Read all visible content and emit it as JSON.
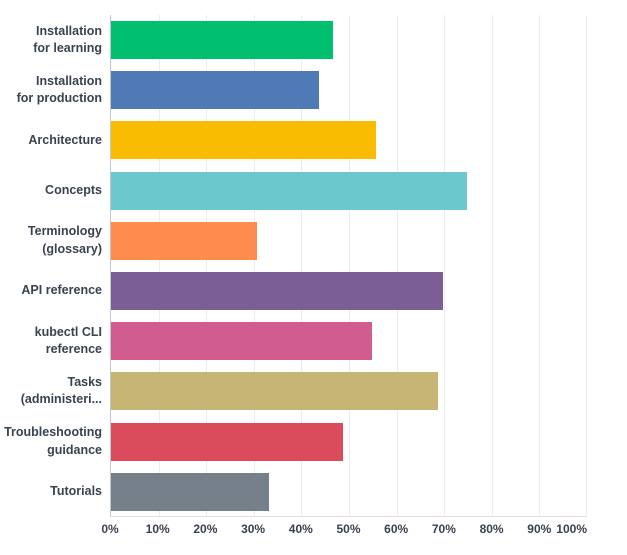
{
  "chart_data": {
    "type": "bar",
    "orientation": "horizontal",
    "title": "",
    "xlabel": "",
    "ylabel": "",
    "xlim": [
      0,
      100
    ],
    "grid": true,
    "legend": false,
    "x_tick_labels": [
      "0%",
      "10%",
      "20%",
      "30%",
      "40%",
      "50%",
      "60%",
      "70%",
      "80%",
      "90%",
      "100%"
    ],
    "categories": [
      "Installation for learning",
      "Installation for production",
      "Architecture",
      "Concepts",
      "Terminology (glossary)",
      "API reference",
      "kubectl CLI reference",
      "Tasks (administeri...",
      "Troubleshooting guidance",
      "Tutorials"
    ],
    "values": [
      46.5,
      43.5,
      55.5,
      74.5,
      30.5,
      69.5,
      54.5,
      68.5,
      48.5,
      33
    ],
    "rows": [
      {
        "label_lines": [
          "Installation",
          "for learning"
        ],
        "value": 46.5,
        "color": "#00BF6F"
      },
      {
        "label_lines": [
          "Installation",
          "for production"
        ],
        "value": 43.5,
        "color": "#507AB5"
      },
      {
        "label_lines": [
          "Architecture"
        ],
        "value": 55.5,
        "color": "#F9BC01"
      },
      {
        "label_lines": [
          "Concepts"
        ],
        "value": 74.5,
        "color": "#6BC8CC"
      },
      {
        "label_lines": [
          "Terminology",
          "(glossary)"
        ],
        "value": 30.5,
        "color": "#FD8C4E"
      },
      {
        "label_lines": [
          "API reference"
        ],
        "value": 69.5,
        "color": "#7B5E93"
      },
      {
        "label_lines": [
          "kubectl CLI",
          "reference"
        ],
        "value": 54.5,
        "color": "#D15D90"
      },
      {
        "label_lines": [
          "Tasks",
          "(administeri..."
        ],
        "value": 68.5,
        "color": "#C7B575"
      },
      {
        "label_lines": [
          "Troubleshooting",
          "guidance"
        ],
        "value": 48.5,
        "color": "#DA4B5B"
      },
      {
        "label_lines": [
          "Tutorials"
        ],
        "value": 33,
        "color": "#75808A"
      }
    ],
    "colors": {
      "label_text": "#3a4350",
      "tick_text": "#39424e",
      "gridline": "#ededef",
      "axis_line": "#c5c8cd",
      "baseline": "#dfe1e4",
      "background": "#ffffff"
    }
  }
}
